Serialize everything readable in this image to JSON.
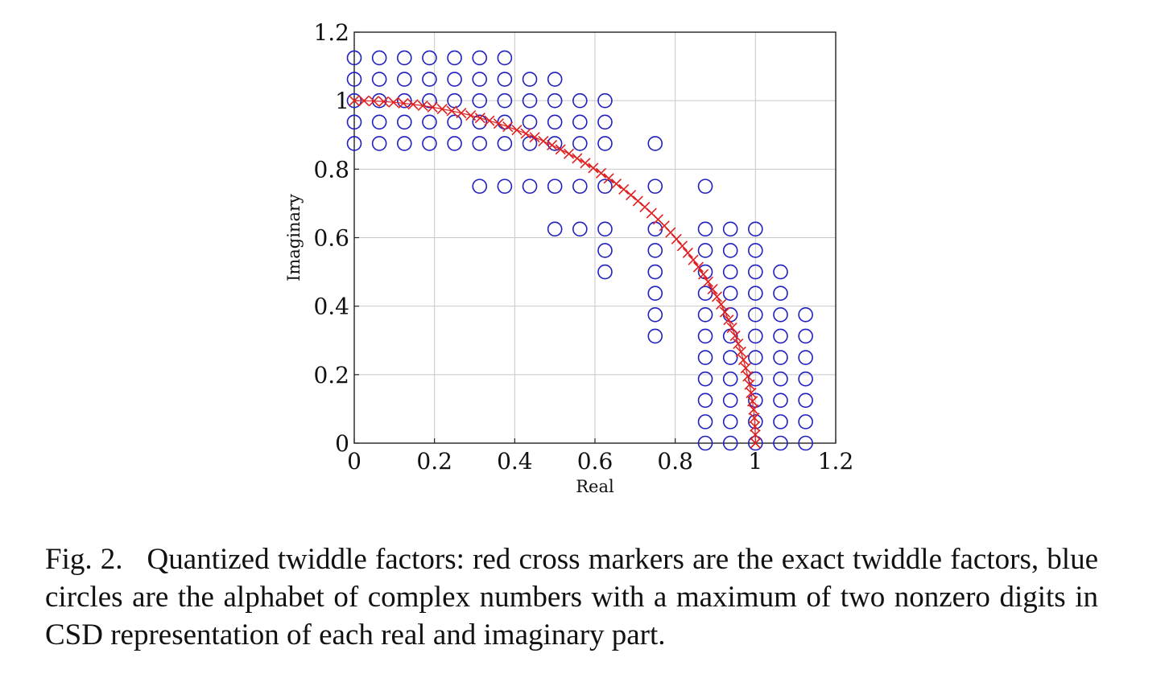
{
  "chart_data": {
    "type": "scatter",
    "xlabel": "Real",
    "ylabel": "Imaginary",
    "xlim": [
      0,
      1.2
    ],
    "ylim": [
      0,
      1.2
    ],
    "xticks": [
      "0",
      "0.2",
      "0.4",
      "0.6",
      "0.8",
      "1",
      "1.2"
    ],
    "yticks": [
      "0",
      "0.2",
      "0.4",
      "0.6",
      "0.8",
      "1",
      "1.2"
    ],
    "grid": true,
    "series": [
      {
        "marker": "circle",
        "color": "#2020c0",
        "points": [
          [
            0,
            1.125
          ],
          [
            0.0625,
            1.125
          ],
          [
            0.125,
            1.125
          ],
          [
            0.1875,
            1.125
          ],
          [
            0.25,
            1.125
          ],
          [
            0.3125,
            1.125
          ],
          [
            0.375,
            1.125
          ],
          [
            0,
            1.0625
          ],
          [
            0.0625,
            1.0625
          ],
          [
            0.125,
            1.0625
          ],
          [
            0.1875,
            1.0625
          ],
          [
            0.25,
            1.0625
          ],
          [
            0.3125,
            1.0625
          ],
          [
            0.375,
            1.0625
          ],
          [
            0.4375,
            1.0625
          ],
          [
            0.5,
            1.0625
          ],
          [
            0,
            1
          ],
          [
            0.0625,
            1
          ],
          [
            0.125,
            1
          ],
          [
            0.1875,
            1
          ],
          [
            0.25,
            1
          ],
          [
            0.3125,
            1
          ],
          [
            0.375,
            1
          ],
          [
            0.4375,
            1
          ],
          [
            0.5,
            1
          ],
          [
            0.5625,
            1
          ],
          [
            0.625,
            1
          ],
          [
            0,
            0.9375
          ],
          [
            0.0625,
            0.9375
          ],
          [
            0.125,
            0.9375
          ],
          [
            0.1875,
            0.9375
          ],
          [
            0.25,
            0.9375
          ],
          [
            0.3125,
            0.9375
          ],
          [
            0.375,
            0.9375
          ],
          [
            0.4375,
            0.9375
          ],
          [
            0.5,
            0.9375
          ],
          [
            0.5625,
            0.9375
          ],
          [
            0.625,
            0.9375
          ],
          [
            0,
            0.875
          ],
          [
            0.0625,
            0.875
          ],
          [
            0.125,
            0.875
          ],
          [
            0.1875,
            0.875
          ],
          [
            0.25,
            0.875
          ],
          [
            0.3125,
            0.875
          ],
          [
            0.375,
            0.875
          ],
          [
            0.4375,
            0.875
          ],
          [
            0.5,
            0.875
          ],
          [
            0.5625,
            0.875
          ],
          [
            0.625,
            0.875
          ],
          [
            0.75,
            0.875
          ],
          [
            0.3125,
            0.75
          ],
          [
            0.375,
            0.75
          ],
          [
            0.4375,
            0.75
          ],
          [
            0.5,
            0.75
          ],
          [
            0.5625,
            0.75
          ],
          [
            0.625,
            0.75
          ],
          [
            0.75,
            0.75
          ],
          [
            0.875,
            0.75
          ],
          [
            0.5,
            0.625
          ],
          [
            0.5625,
            0.625
          ],
          [
            0.625,
            0.625
          ],
          [
            0.75,
            0.625
          ],
          [
            0.875,
            0.625
          ],
          [
            0.9375,
            0.625
          ],
          [
            1,
            0.625
          ],
          [
            0.625,
            0.5625
          ],
          [
            0.75,
            0.5625
          ],
          [
            0.875,
            0.5625
          ],
          [
            0.9375,
            0.5625
          ],
          [
            1,
            0.5625
          ],
          [
            0.625,
            0.5
          ],
          [
            0.75,
            0.5
          ],
          [
            0.875,
            0.5
          ],
          [
            0.9375,
            0.5
          ],
          [
            1,
            0.5
          ],
          [
            1.0625,
            0.5
          ],
          [
            0.75,
            0.4375
          ],
          [
            0.875,
            0.4375
          ],
          [
            0.9375,
            0.4375
          ],
          [
            1,
            0.4375
          ],
          [
            1.0625,
            0.4375
          ],
          [
            0.75,
            0.375
          ],
          [
            0.875,
            0.375
          ],
          [
            0.9375,
            0.375
          ],
          [
            1,
            0.375
          ],
          [
            1.0625,
            0.375
          ],
          [
            1.125,
            0.375
          ],
          [
            0.75,
            0.3125
          ],
          [
            0.875,
            0.3125
          ],
          [
            0.9375,
            0.3125
          ],
          [
            1,
            0.3125
          ],
          [
            1.0625,
            0.3125
          ],
          [
            1.125,
            0.3125
          ],
          [
            0.875,
            0.25
          ],
          [
            0.9375,
            0.25
          ],
          [
            1,
            0.25
          ],
          [
            1.0625,
            0.25
          ],
          [
            1.125,
            0.25
          ],
          [
            0.875,
            0.1875
          ],
          [
            0.9375,
            0.1875
          ],
          [
            1,
            0.1875
          ],
          [
            1.0625,
            0.1875
          ],
          [
            1.125,
            0.1875
          ],
          [
            0.875,
            0.125
          ],
          [
            0.9375,
            0.125
          ],
          [
            1,
            0.125
          ],
          [
            1.0625,
            0.125
          ],
          [
            1.125,
            0.125
          ],
          [
            0.875,
            0.0625
          ],
          [
            0.9375,
            0.0625
          ],
          [
            1,
            0.0625
          ],
          [
            1.0625,
            0.0625
          ],
          [
            1.125,
            0.0625
          ],
          [
            0.875,
            0
          ],
          [
            0.9375,
            0
          ],
          [
            1,
            0
          ],
          [
            1.0625,
            0
          ],
          [
            1.125,
            0
          ]
        ]
      },
      {
        "marker": "cross",
        "color": "#e02020",
        "points": [
          [
            0,
            1
          ],
          [
            0.0245,
            0.9997
          ],
          [
            0.049,
            0.9988
          ],
          [
            0.0734,
            0.9973
          ],
          [
            0.098,
            0.9952
          ],
          [
            0.1224,
            0.9925
          ],
          [
            0.1467,
            0.9892
          ],
          [
            0.171,
            0.9853
          ],
          [
            0.1951,
            0.9808
          ],
          [
            0.2191,
            0.9757
          ],
          [
            0.243,
            0.97
          ],
          [
            0.2667,
            0.9638
          ],
          [
            0.2903,
            0.9569
          ],
          [
            0.3137,
            0.9495
          ],
          [
            0.3369,
            0.9415
          ],
          [
            0.3599,
            0.933
          ],
          [
            0.3827,
            0.9239
          ],
          [
            0.4052,
            0.9142
          ],
          [
            0.4276,
            0.904
          ],
          [
            0.4496,
            0.8932
          ],
          [
            0.4714,
            0.8819
          ],
          [
            0.4929,
            0.8701
          ],
          [
            0.5141,
            0.8577
          ],
          [
            0.535,
            0.8449
          ],
          [
            0.5556,
            0.8315
          ],
          [
            0.5758,
            0.8176
          ],
          [
            0.5957,
            0.8032
          ],
          [
            0.6152,
            0.7883
          ],
          [
            0.6344,
            0.773
          ],
          [
            0.6532,
            0.7572
          ],
          [
            0.6716,
            0.741
          ],
          [
            0.6895,
            0.7242
          ],
          [
            0.7071,
            0.7071
          ],
          [
            0.7242,
            0.6895
          ],
          [
            0.741,
            0.6716
          ],
          [
            0.7572,
            0.6532
          ],
          [
            0.773,
            0.6344
          ],
          [
            0.7883,
            0.6152
          ],
          [
            0.8032,
            0.5957
          ],
          [
            0.8176,
            0.5758
          ],
          [
            0.8315,
            0.5556
          ],
          [
            0.8449,
            0.535
          ],
          [
            0.8577,
            0.5141
          ],
          [
            0.8701,
            0.4929
          ],
          [
            0.8819,
            0.4714
          ],
          [
            0.8932,
            0.4496
          ],
          [
            0.904,
            0.4276
          ],
          [
            0.9142,
            0.4052
          ],
          [
            0.9239,
            0.3827
          ],
          [
            0.933,
            0.3599
          ],
          [
            0.9415,
            0.3369
          ],
          [
            0.9495,
            0.3137
          ],
          [
            0.9569,
            0.2903
          ],
          [
            0.9638,
            0.2667
          ],
          [
            0.97,
            0.243
          ],
          [
            0.9757,
            0.2191
          ],
          [
            0.9808,
            0.1951
          ],
          [
            0.9853,
            0.171
          ],
          [
            0.9892,
            0.1467
          ],
          [
            0.9925,
            0.1224
          ],
          [
            0.9952,
            0.098
          ],
          [
            0.9973,
            0.0734
          ],
          [
            0.9988,
            0.049
          ],
          [
            0.9997,
            0.0245
          ],
          [
            1,
            0
          ]
        ]
      }
    ]
  },
  "caption": {
    "label": "Fig. 2.",
    "text": "Quantized twiddle factors: red cross markers are the exact twiddle factors, blue circles are the alphabet of complex numbers with a maximum of two nonzero digits in CSD representation of each real and imaginary part."
  }
}
